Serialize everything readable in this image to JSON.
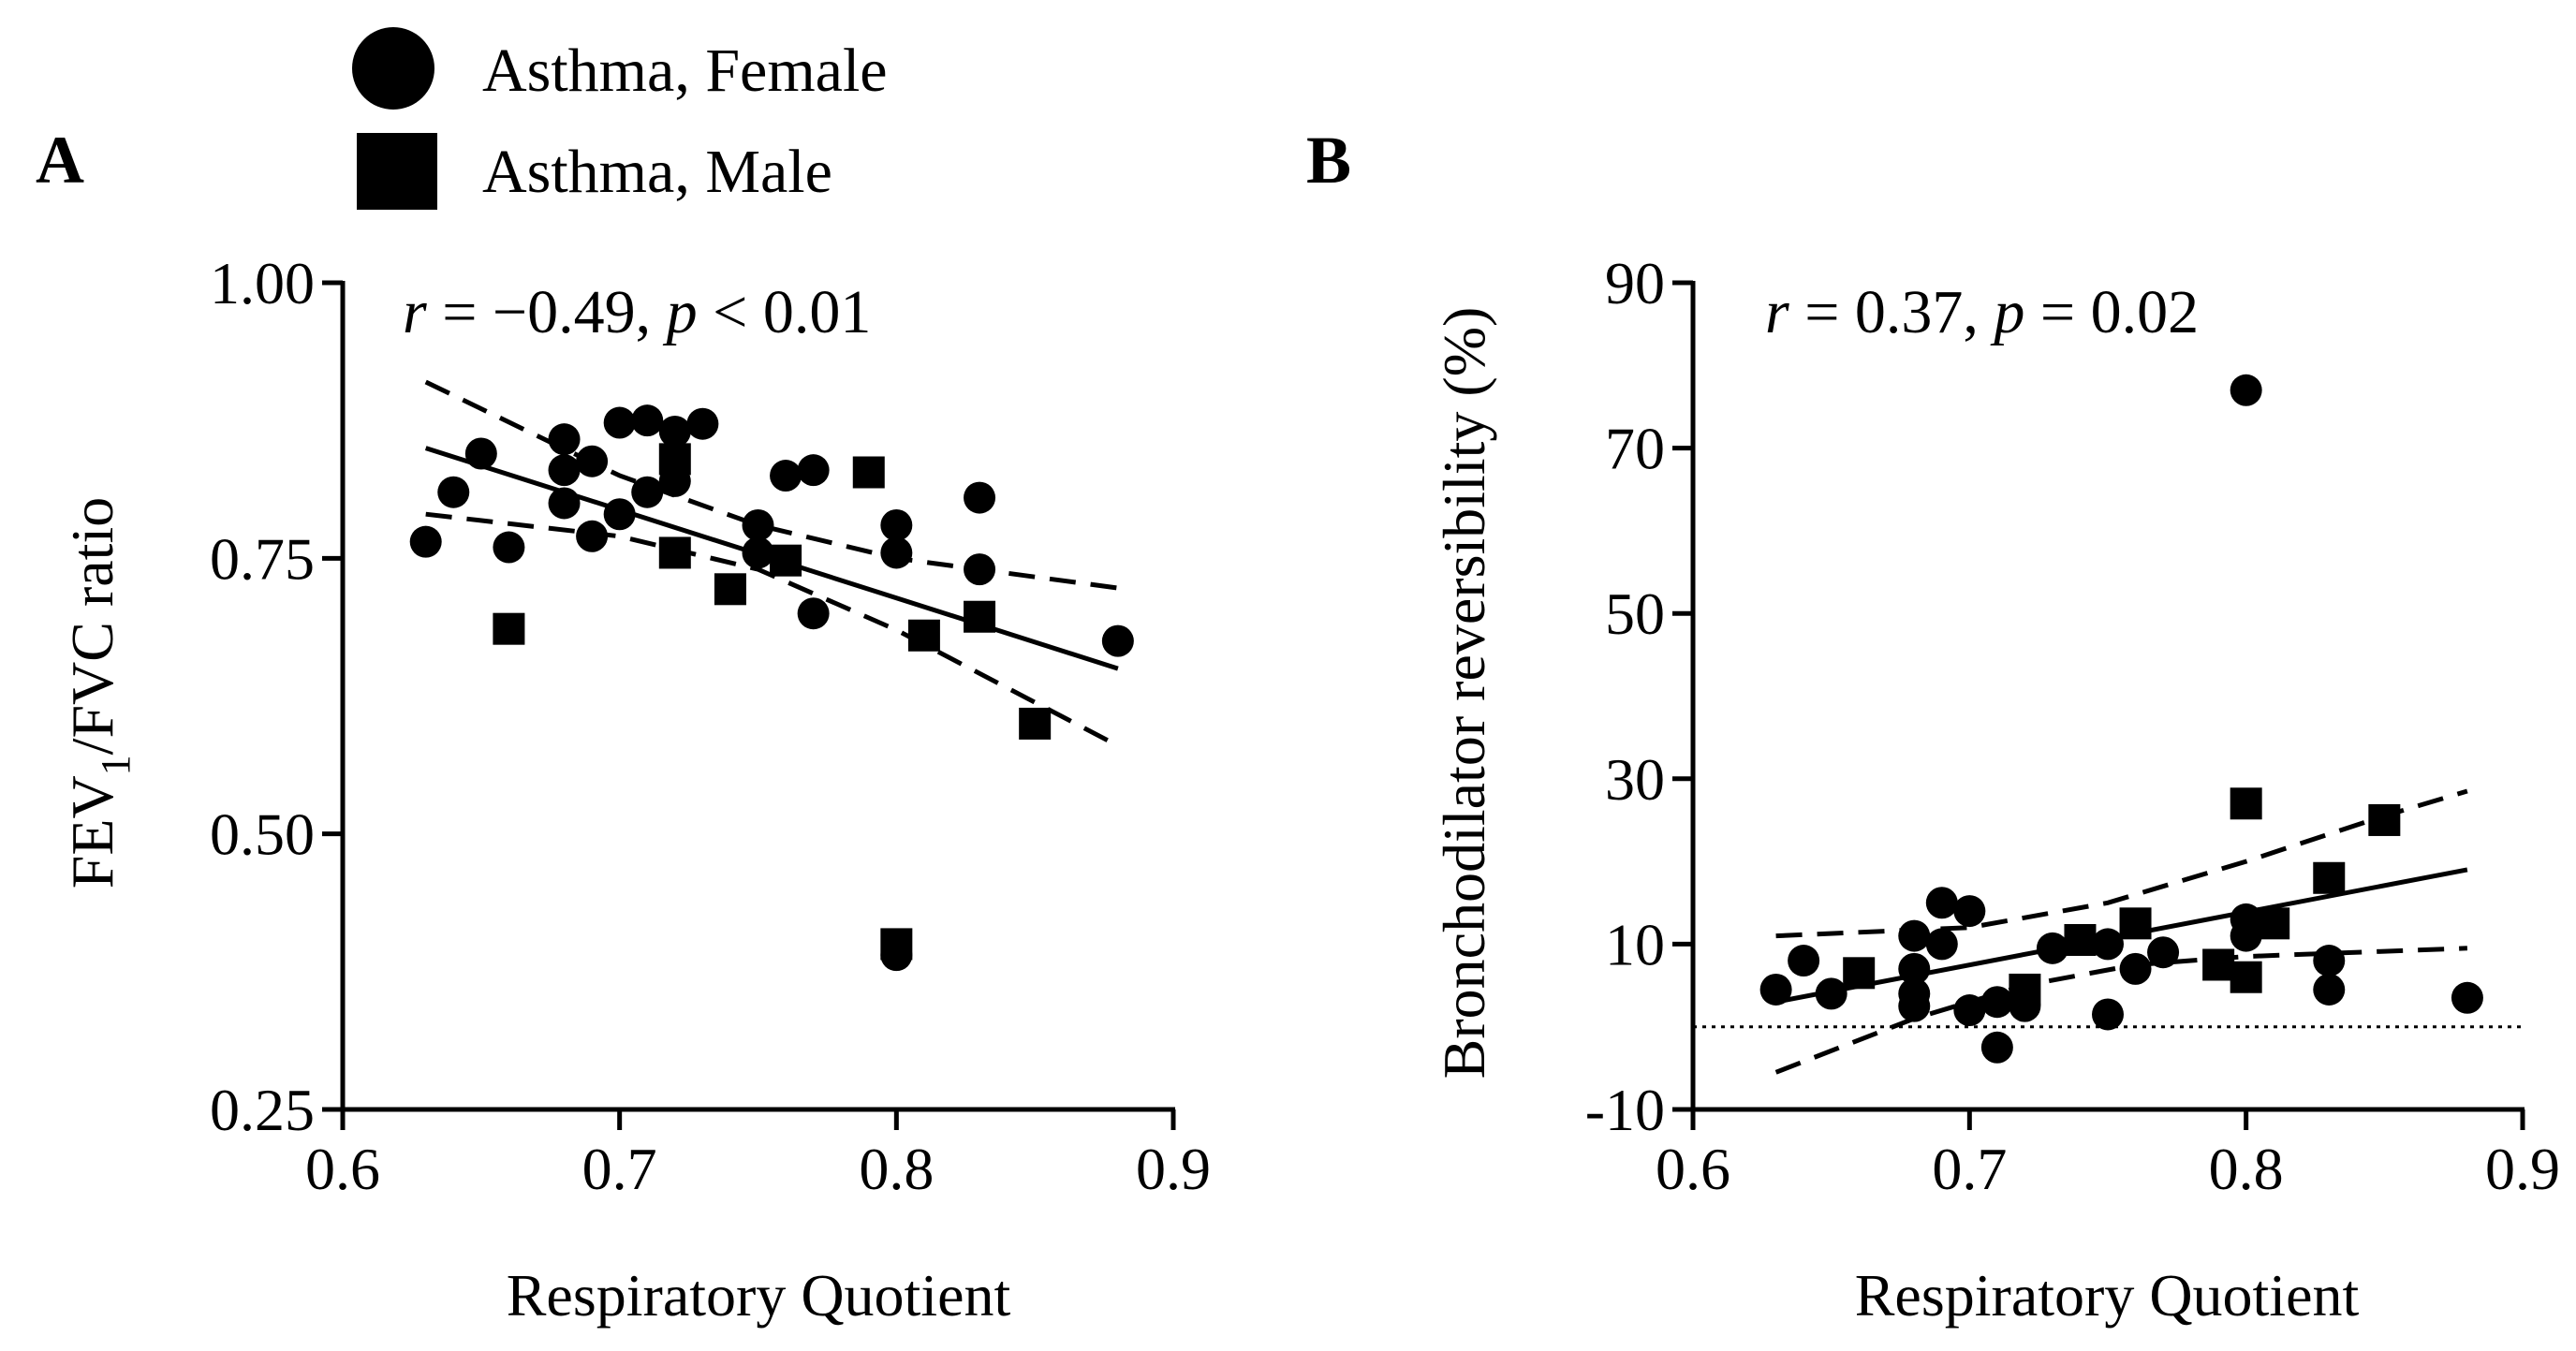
{
  "legend": {
    "items": [
      {
        "label": "Asthma, Female",
        "marker": "circle"
      },
      {
        "label": "Asthma, Male",
        "marker": "square"
      }
    ]
  },
  "chart_data": [
    {
      "panel": "A",
      "type": "scatter",
      "xlabel": "Respiratory Quotient",
      "ylabel": "FEV1/FVC ratio",
      "ylabel_parts": {
        "main": "FEV",
        "sub": "1",
        "rest": "/FVC ratio"
      },
      "stat": {
        "r_sym": "r",
        "r_text": " = −0.49, ",
        "p_sym": "p",
        "p_text": " < 0.01"
      },
      "xlim": [
        0.6,
        0.9
      ],
      "ylim": [
        0.25,
        1.0
      ],
      "xticks": [
        0.6,
        0.7,
        0.8,
        0.9
      ],
      "xtick_labels": [
        "0.6",
        "0.7",
        "0.8",
        "0.9"
      ],
      "yticks": [
        0.25,
        0.5,
        0.75,
        1.0
      ],
      "ytick_labels": [
        "0.25",
        "0.50",
        "0.75",
        "1.00"
      ],
      "series": [
        {
          "name": "Asthma, Female",
          "marker": "circle",
          "points": [
            [
              0.63,
              0.765
            ],
            [
              0.64,
              0.81
            ],
            [
              0.65,
              0.845
            ],
            [
              0.66,
              0.76
            ],
            [
              0.68,
              0.858
            ],
            [
              0.68,
              0.83
            ],
            [
              0.68,
              0.8
            ],
            [
              0.69,
              0.838
            ],
            [
              0.69,
              0.77
            ],
            [
              0.7,
              0.873
            ],
            [
              0.7,
              0.79
            ],
            [
              0.71,
              0.875
            ],
            [
              0.71,
              0.81
            ],
            [
              0.72,
              0.865
            ],
            [
              0.72,
              0.82
            ],
            [
              0.73,
              0.872
            ],
            [
              0.75,
              0.78
            ],
            [
              0.75,
              0.755
            ],
            [
              0.76,
              0.825
            ],
            [
              0.77,
              0.83
            ],
            [
              0.77,
              0.7
            ],
            [
              0.8,
              0.78
            ],
            [
              0.8,
              0.755
            ],
            [
              0.8,
              0.39
            ],
            [
              0.83,
              0.805
            ],
            [
              0.83,
              0.74
            ],
            [
              0.88,
              0.675
            ]
          ]
        },
        {
          "name": "Asthma, Male",
          "marker": "square",
          "points": [
            [
              0.66,
              0.686
            ],
            [
              0.72,
              0.755
            ],
            [
              0.72,
              0.84
            ],
            [
              0.74,
              0.722
            ],
            [
              0.76,
              0.748
            ],
            [
              0.79,
              0.828
            ],
            [
              0.8,
              0.4
            ],
            [
              0.81,
              0.68
            ],
            [
              0.83,
              0.697
            ],
            [
              0.85,
              0.6
            ]
          ]
        }
      ],
      "fit": {
        "x": [
          0.63,
          0.88
        ],
        "y": [
          0.85,
          0.65
        ]
      },
      "ci_upper": {
        "x": [
          0.63,
          0.7,
          0.75,
          0.8,
          0.88
        ],
        "y": [
          0.91,
          0.825,
          0.78,
          0.75,
          0.723
        ]
      },
      "ci_lower": {
        "x": [
          0.63,
          0.7,
          0.75,
          0.8,
          0.88
        ],
        "y": [
          0.79,
          0.77,
          0.74,
          0.685,
          0.58
        ]
      }
    },
    {
      "panel": "B",
      "type": "scatter",
      "xlabel": "Respiratory Quotient",
      "ylabel": "Bronchodilator reversibility (%)",
      "stat": {
        "r_sym": "r",
        "r_text": " = 0.37, ",
        "p_sym": "p",
        "p_text": " = 0.02"
      },
      "xlim": [
        0.6,
        0.9
      ],
      "ylim": [
        -10,
        90
      ],
      "xticks": [
        0.6,
        0.7,
        0.8,
        0.9
      ],
      "xtick_labels": [
        "0.6",
        "0.7",
        "0.8",
        "0.9"
      ],
      "yticks": [
        -10,
        10,
        30,
        50,
        70,
        90
      ],
      "ytick_labels": [
        "-10",
        "10",
        "30",
        "50",
        "70",
        "90"
      ],
      "reference_line_y": 0,
      "series": [
        {
          "name": "Asthma, Female",
          "marker": "circle",
          "points": [
            [
              0.63,
              4.5
            ],
            [
              0.64,
              8.0
            ],
            [
              0.65,
              4.0
            ],
            [
              0.68,
              11.0
            ],
            [
              0.68,
              7.0
            ],
            [
              0.68,
              4.0
            ],
            [
              0.68,
              2.5
            ],
            [
              0.69,
              15.0
            ],
            [
              0.69,
              10.0
            ],
            [
              0.7,
              14.0
            ],
            [
              0.7,
              2.0
            ],
            [
              0.71,
              3.0
            ],
            [
              0.71,
              -2.5
            ],
            [
              0.72,
              2.5
            ],
            [
              0.73,
              9.5
            ],
            [
              0.75,
              10.0
            ],
            [
              0.75,
              1.5
            ],
            [
              0.76,
              7.0
            ],
            [
              0.77,
              9.0
            ],
            [
              0.8,
              77.0
            ],
            [
              0.8,
              13.0
            ],
            [
              0.8,
              11.0
            ],
            [
              0.83,
              8.0
            ],
            [
              0.83,
              4.5
            ],
            [
              0.88,
              3.5
            ]
          ]
        },
        {
          "name": "Asthma, Male",
          "marker": "square",
          "points": [
            [
              0.66,
              6.5
            ],
            [
              0.72,
              4.5
            ],
            [
              0.74,
              10.5
            ],
            [
              0.76,
              12.5
            ],
            [
              0.79,
              7.5
            ],
            [
              0.8,
              27.0
            ],
            [
              0.8,
              6.0
            ],
            [
              0.81,
              12.5
            ],
            [
              0.83,
              18.0
            ],
            [
              0.85,
              25.0
            ]
          ]
        }
      ],
      "fit": {
        "x": [
          0.63,
          0.88
        ],
        "y": [
          3.0,
          19.0
        ]
      },
      "ci_upper": {
        "x": [
          0.63,
          0.7,
          0.75,
          0.8,
          0.85,
          0.88
        ],
        "y": [
          11.0,
          12.0,
          15.0,
          20.0,
          25.5,
          28.5
        ]
      },
      "ci_lower": {
        "x": [
          0.63,
          0.68,
          0.72,
          0.76,
          0.8,
          0.88
        ],
        "y": [
          -5.5,
          1.0,
          5.0,
          7.5,
          8.5,
          9.5
        ]
      }
    }
  ]
}
